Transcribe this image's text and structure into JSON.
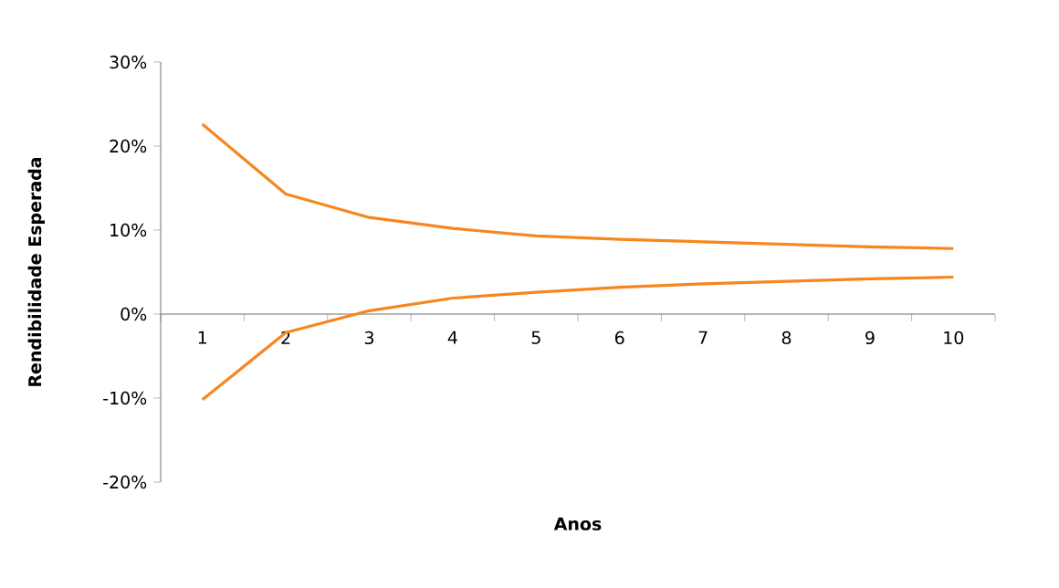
{
  "chart_data": {
    "type": "line",
    "xlabel": "Anos",
    "ylabel": "Rendibilidade Esperada",
    "categories": [
      "1",
      "2",
      "3",
      "4",
      "5",
      "6",
      "7",
      "8",
      "9",
      "10"
    ],
    "series": [
      {
        "color": "#f7861e",
        "values": [
          22.6,
          14.3,
          11.5,
          10.2,
          9.3,
          8.9,
          8.6,
          8.3,
          8.0,
          7.8
        ]
      },
      {
        "color": "#f7861e",
        "values": [
          -10.2,
          -2.2,
          0.4,
          1.9,
          2.6,
          3.2,
          3.6,
          3.9,
          4.2,
          4.4
        ]
      }
    ],
    "ylim": [
      -20,
      30
    ],
    "yticks": [
      {
        "value": -20,
        "label": "-20%"
      },
      {
        "value": -10,
        "label": "-10%"
      },
      {
        "value": 0,
        "label": "0%"
      },
      {
        "value": 10,
        "label": "10%"
      },
      {
        "value": 20,
        "label": "20%"
      },
      {
        "value": 30,
        "label": "30%"
      }
    ],
    "grid": false,
    "marker": "none",
    "line_style": "solid"
  }
}
